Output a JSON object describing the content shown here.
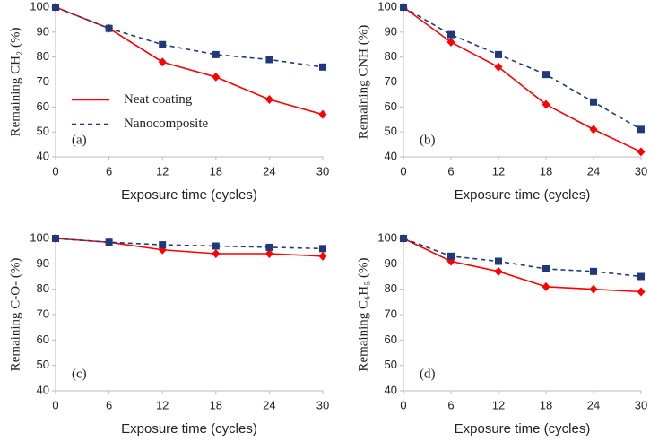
{
  "chart_data": [
    {
      "type": "line",
      "annotation": "(a)",
      "xlabel": "Exposure time (cycles)",
      "ylabel": "Remaining CH₂ (%)",
      "x": [
        0,
        6,
        12,
        18,
        24,
        30
      ],
      "xlim": [
        0,
        30
      ],
      "xticks": [
        0,
        6,
        12,
        18,
        24,
        30
      ],
      "ylim": [
        40,
        100
      ],
      "yticks": [
        40,
        50,
        60,
        70,
        80,
        90,
        100
      ],
      "legend": "middle-left",
      "series": [
        {
          "name": "Neat coating",
          "color": "#ff0000",
          "linestyle": "solid",
          "marker": "diamond",
          "values": [
            100,
            91.5,
            78,
            72,
            63,
            57
          ]
        },
        {
          "name": "Nanocomposite",
          "color": "#1f3a7a",
          "linestyle": "dashed",
          "marker": "square",
          "values": [
            100,
            91.5,
            85,
            81,
            79,
            76
          ]
        }
      ]
    },
    {
      "type": "line",
      "annotation": "(b)",
      "xlabel": "Exposure time (cycles)",
      "ylabel": "Remaining CNH (%)",
      "x": [
        0,
        6,
        12,
        18,
        24,
        30
      ],
      "xlim": [
        0,
        30
      ],
      "xticks": [
        0,
        6,
        12,
        18,
        24,
        30
      ],
      "ylim": [
        40,
        100
      ],
      "yticks": [
        40,
        50,
        60,
        70,
        80,
        90,
        100
      ],
      "series": [
        {
          "color": "#ff0000",
          "linestyle": "solid",
          "marker": "diamond",
          "values": [
            100,
            86,
            76,
            61,
            51,
            42
          ]
        },
        {
          "color": "#1f3a7a",
          "linestyle": "dashed",
          "marker": "square",
          "values": [
            100,
            89,
            81,
            73,
            62,
            51
          ]
        }
      ]
    },
    {
      "type": "line",
      "annotation": "(c)",
      "xlabel": "Exposure time (cycles)",
      "ylabel": "Remaining C-O- (%)",
      "x": [
        0,
        6,
        12,
        18,
        24,
        30
      ],
      "xlim": [
        0,
        30
      ],
      "xticks": [
        0,
        6,
        12,
        18,
        24,
        30
      ],
      "ylim": [
        40,
        100
      ],
      "yticks": [
        40,
        50,
        60,
        70,
        80,
        90,
        100
      ],
      "series": [
        {
          "color": "#ff0000",
          "linestyle": "solid",
          "marker": "diamond",
          "values": [
            100,
            98.5,
            95.5,
            94,
            94,
            93
          ]
        },
        {
          "color": "#1f3a7a",
          "linestyle": "dashed",
          "marker": "square",
          "values": [
            100,
            98.5,
            97.5,
            97,
            96.5,
            96
          ]
        }
      ]
    },
    {
      "type": "line",
      "annotation": "(d)",
      "xlabel": "Exposure time (cycles)",
      "ylabel": "Remaining C₆H₅ (%)",
      "x": [
        0,
        6,
        12,
        18,
        24,
        30
      ],
      "xlim": [
        0,
        30
      ],
      "xticks": [
        0,
        6,
        12,
        18,
        24,
        30
      ],
      "ylim": [
        40,
        100
      ],
      "yticks": [
        40,
        50,
        60,
        70,
        80,
        90,
        100
      ],
      "series": [
        {
          "color": "#ff0000",
          "linestyle": "solid",
          "marker": "diamond",
          "values": [
            100,
            91,
            87,
            81,
            80,
            79
          ]
        },
        {
          "color": "#1f3a7a",
          "linestyle": "dashed",
          "marker": "square",
          "values": [
            100,
            93,
            91,
            88,
            87,
            85
          ]
        }
      ]
    }
  ]
}
